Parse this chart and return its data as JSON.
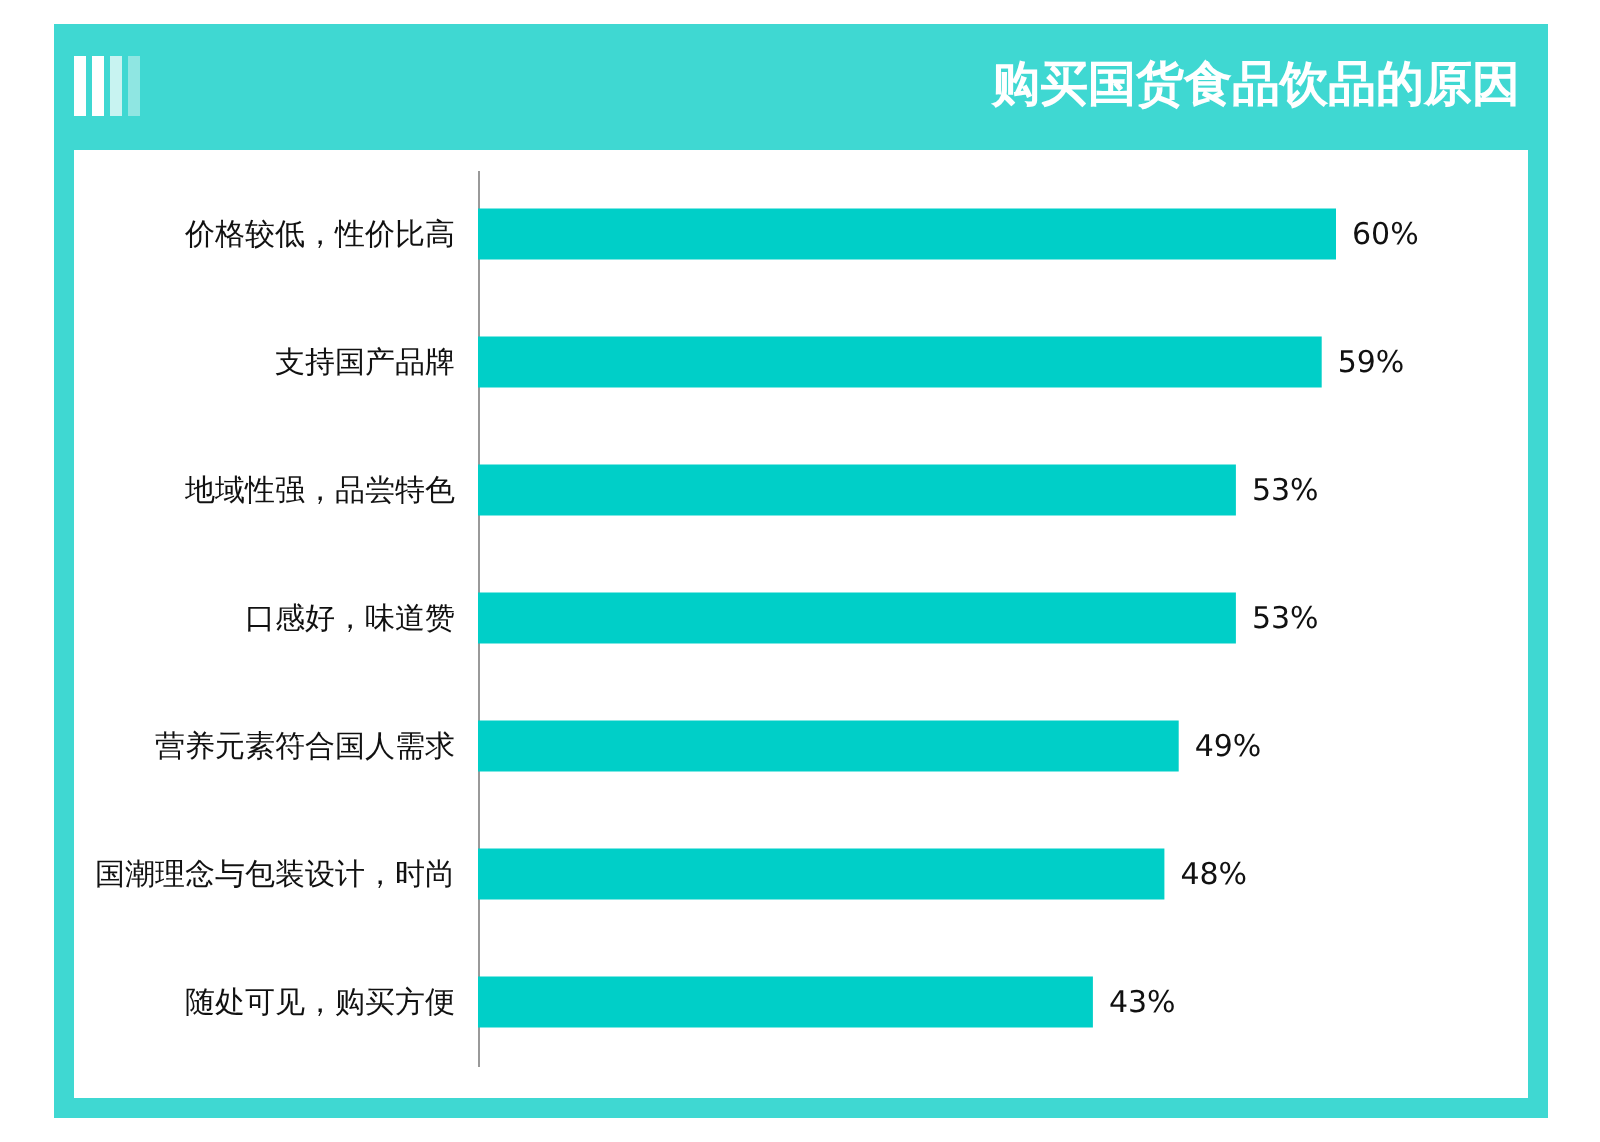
{
  "chart_data": {
    "type": "bar",
    "orientation": "horizontal",
    "title": "购买国货食品饮品的原因",
    "categories": [
      "价格较低，性价比高",
      "支持国产品牌",
      "地域性强，品尝特色",
      "口感好，味道赞",
      "营养元素符合国人需求",
      "国潮理念与包装设计，时尚",
      "随处可见，购买方便"
    ],
    "values": [
      60,
      59,
      53,
      53,
      49,
      48,
      43
    ],
    "value_labels": [
      "60%",
      "59%",
      "53%",
      "53%",
      "49%",
      "48%",
      "43%"
    ],
    "color": "#00cfc8"
  }
}
